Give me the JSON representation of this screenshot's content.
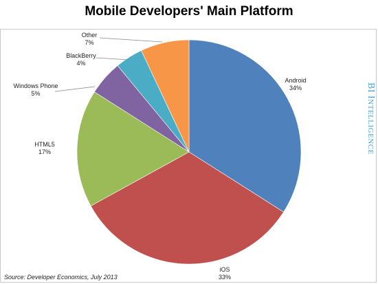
{
  "chart_data": {
    "type": "pie",
    "title": "Mobile Developers' Main Platform",
    "slices": [
      {
        "label": "Android",
        "value": 34,
        "pct": "34%",
        "color": "#4f81bd"
      },
      {
        "label": "iOS",
        "value": 33,
        "pct": "33%",
        "color": "#c0504d"
      },
      {
        "label": "HTML5",
        "value": 17,
        "pct": "17%",
        "color": "#9bbb59"
      },
      {
        "label": "Windows Phone",
        "value": 5,
        "pct": "5%",
        "color": "#8064a2"
      },
      {
        "label": "BlackBerry",
        "value": 4,
        "pct": "4%",
        "color": "#4bacc6"
      },
      {
        "label": "Other",
        "value": 7,
        "pct": "7%",
        "color": "#f79646"
      }
    ],
    "source": "Source: Developer Economics, July 2013",
    "brand": {
      "first": "BI",
      "second": "I",
      "rest": "NTELLIGENCE"
    }
  }
}
